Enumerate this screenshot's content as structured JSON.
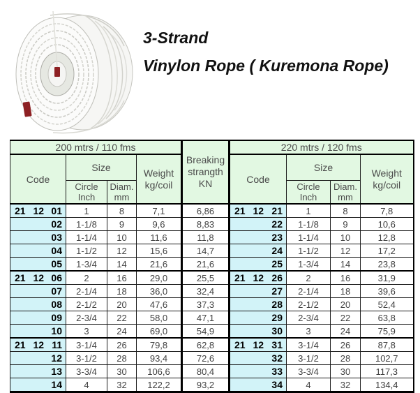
{
  "title": {
    "line1": "3-Strand",
    "line2": "Vinylon Rope ( Kuremona Rope)"
  },
  "product_image": {
    "description": "coil of white 3-strand vinylon rope",
    "tag_color": "#8d2023"
  },
  "colors": {
    "header_bg": "#e2f8e2",
    "code_col_bg": "#d2f3f8",
    "border": "#000000",
    "data_text": "#414141",
    "header_text": "#4a4a4a"
  },
  "table": {
    "left_section": {
      "length_header": "200 mtrs / 110 fms",
      "code_header": "Code",
      "size_header": "Size",
      "circle_header": [
        "Circle",
        "Inch"
      ],
      "diam_header": [
        "Diam.",
        "mm"
      ],
      "weight_header": [
        "Weight",
        "kg/coil"
      ],
      "breaking_header": [
        "Breaking",
        "strangth",
        "KN"
      ]
    },
    "right_section": {
      "length_header": "220 mtrs / 120 fms",
      "code_header": "Code",
      "size_header": "Size",
      "circle_header": [
        "Circle",
        "Inch"
      ],
      "diam_header": [
        "Diam.",
        "mm"
      ],
      "weight_header": [
        "Weight",
        "kg/coil"
      ]
    },
    "rows": [
      {
        "group_start": true,
        "left": {
          "code_prefix": "21 12",
          "code": "01",
          "circle_inch": "1",
          "diam_mm": "8",
          "weight_kg": "7,1",
          "breaking_kn": "6,86"
        },
        "right": {
          "code_prefix": "21 12",
          "code": "21",
          "circle_inch": "1",
          "diam_mm": "8",
          "weight_kg": "7,8"
        }
      },
      {
        "left": {
          "code_prefix": "",
          "code": "02",
          "circle_inch": "1-1/8",
          "diam_mm": "9",
          "weight_kg": "9,6",
          "breaking_kn": "8,83"
        },
        "right": {
          "code_prefix": "",
          "code": "22",
          "circle_inch": "1-1/8",
          "diam_mm": "9",
          "weight_kg": "10,6"
        }
      },
      {
        "left": {
          "code_prefix": "",
          "code": "03",
          "circle_inch": "1-1/4",
          "diam_mm": "10",
          "weight_kg": "11,6",
          "breaking_kn": "11,8"
        },
        "right": {
          "code_prefix": "",
          "code": "23",
          "circle_inch": "1-1/4",
          "diam_mm": "10",
          "weight_kg": "12,8"
        }
      },
      {
        "left": {
          "code_prefix": "",
          "code": "04",
          "circle_inch": "1-1/2",
          "diam_mm": "12",
          "weight_kg": "15,6",
          "breaking_kn": "14,7"
        },
        "right": {
          "code_prefix": "",
          "code": "24",
          "circle_inch": "1-1/2",
          "diam_mm": "12",
          "weight_kg": "17,2"
        }
      },
      {
        "left": {
          "code_prefix": "",
          "code": "05",
          "circle_inch": "1-3/4",
          "diam_mm": "14",
          "weight_kg": "21,6",
          "breaking_kn": "21,6"
        },
        "right": {
          "code_prefix": "",
          "code": "25",
          "circle_inch": "1-3/4",
          "diam_mm": "14",
          "weight_kg": "23,8"
        }
      },
      {
        "group_start": true,
        "left": {
          "code_prefix": "21 12",
          "code": "06",
          "circle_inch": "2",
          "diam_mm": "16",
          "weight_kg": "29,0",
          "breaking_kn": "25,5"
        },
        "right": {
          "code_prefix": "21 12",
          "code": "26",
          "circle_inch": "2",
          "diam_mm": "16",
          "weight_kg": "31,9"
        }
      },
      {
        "left": {
          "code_prefix": "",
          "code": "07",
          "circle_inch": "2-1/4",
          "diam_mm": "18",
          "weight_kg": "36,0",
          "breaking_kn": "32,4"
        },
        "right": {
          "code_prefix": "",
          "code": "27",
          "circle_inch": "2-1/4",
          "diam_mm": "18",
          "weight_kg": "39,6"
        }
      },
      {
        "left": {
          "code_prefix": "",
          "code": "08",
          "circle_inch": "2-1/2",
          "diam_mm": "20",
          "weight_kg": "47,6",
          "breaking_kn": "37,3"
        },
        "right": {
          "code_prefix": "",
          "code": "28",
          "circle_inch": "2-1/2",
          "diam_mm": "20",
          "weight_kg": "52,4"
        }
      },
      {
        "left": {
          "code_prefix": "",
          "code": "09",
          "circle_inch": "2-3/4",
          "diam_mm": "22",
          "weight_kg": "58,0",
          "breaking_kn": "47,1"
        },
        "right": {
          "code_prefix": "",
          "code": "29",
          "circle_inch": "2-3/4",
          "diam_mm": "22",
          "weight_kg": "63,8"
        }
      },
      {
        "left": {
          "code_prefix": "",
          "code": "10",
          "circle_inch": "3",
          "diam_mm": "24",
          "weight_kg": "69,0",
          "breaking_kn": "54,9"
        },
        "right": {
          "code_prefix": "",
          "code": "30",
          "circle_inch": "3",
          "diam_mm": "24",
          "weight_kg": "75,9"
        }
      },
      {
        "group_start": true,
        "left": {
          "code_prefix": "21 12",
          "code": "11",
          "circle_inch": "3-1/4",
          "diam_mm": "26",
          "weight_kg": "79,8",
          "breaking_kn": "62,8"
        },
        "right": {
          "code_prefix": "21 12",
          "code": "31",
          "circle_inch": "3-1/4",
          "diam_mm": "26",
          "weight_kg": "87,8"
        }
      },
      {
        "left": {
          "code_prefix": "",
          "code": "12",
          "circle_inch": "3-1/2",
          "diam_mm": "28",
          "weight_kg": "93,4",
          "breaking_kn": "72,6"
        },
        "right": {
          "code_prefix": "",
          "code": "32",
          "circle_inch": "3-1/2",
          "diam_mm": "28",
          "weight_kg": "102,7"
        }
      },
      {
        "left": {
          "code_prefix": "",
          "code": "13",
          "circle_inch": "3-3/4",
          "diam_mm": "30",
          "weight_kg": "106,6",
          "breaking_kn": "80,4"
        },
        "right": {
          "code_prefix": "",
          "code": "33",
          "circle_inch": "3-3/4",
          "diam_mm": "30",
          "weight_kg": "117,3"
        }
      },
      {
        "left": {
          "code_prefix": "",
          "code": "14",
          "circle_inch": "4",
          "diam_mm": "32",
          "weight_kg": "122,2",
          "breaking_kn": "93,2"
        },
        "right": {
          "code_prefix": "",
          "code": "34",
          "circle_inch": "4",
          "diam_mm": "32",
          "weight_kg": "134,4"
        }
      }
    ]
  }
}
